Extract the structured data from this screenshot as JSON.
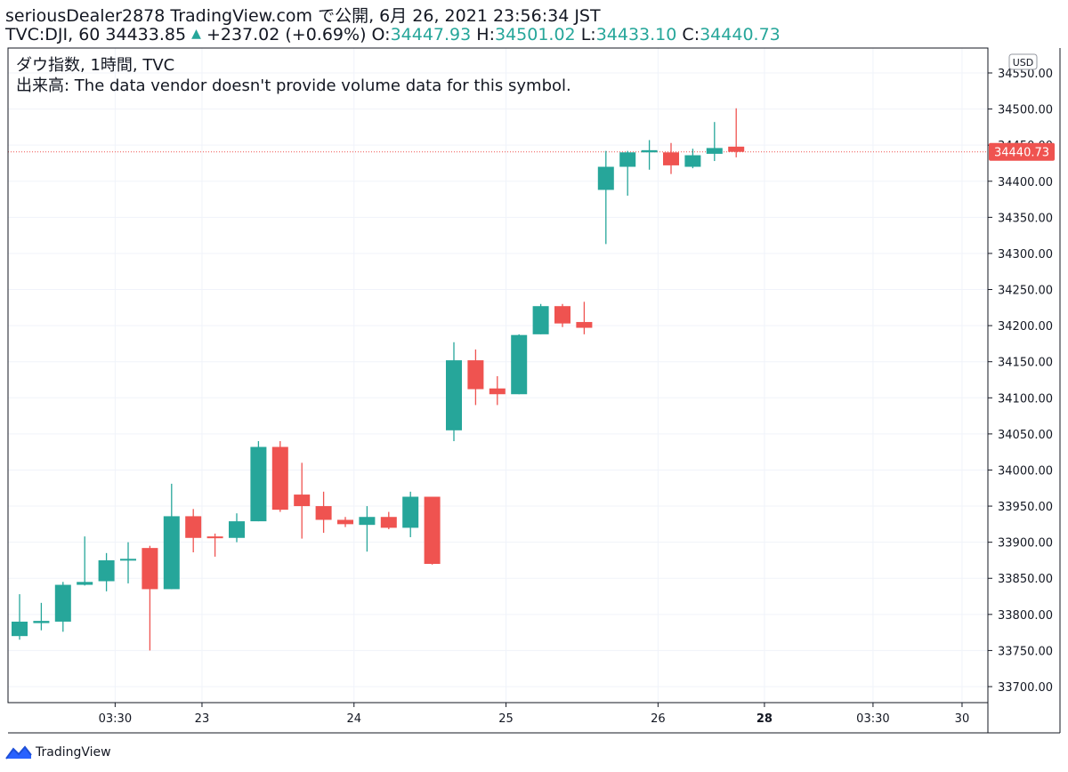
{
  "header": {
    "line1": "seriousDealer2878 TradingView.com で公開, 6月 26, 2021 23:56:34 JST",
    "symbol_prefix": "TVC:DJI, 60 34433.85",
    "change": "+237.02 (+0.69%)",
    "o_label": "O:",
    "o_value": "34447.93",
    "h_label": "H:",
    "h_value": "34501.02",
    "l_label": "L:",
    "l_value": "34433.10",
    "c_label": "C:",
    "c_value": "34440.73"
  },
  "legend": {
    "title": "ダウ指数, 1時間, TVC",
    "volume_note": "出来高: The data vendor doesn't provide volume data for this symbol."
  },
  "footer": {
    "brand": "TradingView"
  },
  "colors": {
    "up": "#26a69a",
    "down": "#ef5350",
    "grid": "#f0f3fa",
    "price_line": "#ef5350"
  },
  "chart_data": {
    "type": "candlestick",
    "currency_label": "USD",
    "last_price_label": "34440.73",
    "last_price": 34440.73,
    "ylim": [
      33670,
      34580
    ],
    "y_ticks": [
      "33700.00",
      "33750.00",
      "33800.00",
      "33850.00",
      "33900.00",
      "33950.00",
      "34000.00",
      "34050.00",
      "34100.00",
      "34150.00",
      "34200.00",
      "34250.00",
      "34300.00",
      "34350.00",
      "34400.00",
      "34450.00",
      "34500.00",
      "34550.00"
    ],
    "x_ticks": [
      {
        "label": "03:30",
        "index": 4.4,
        "bold": false
      },
      {
        "label": "23",
        "index": 8.4,
        "bold": false
      },
      {
        "label": "24",
        "index": 15.4,
        "bold": false
      },
      {
        "label": "25",
        "index": 22.4,
        "bold": false
      },
      {
        "label": "26",
        "index": 29.4,
        "bold": false
      },
      {
        "label": "28",
        "index": 34.3,
        "bold": true
      },
      {
        "label": "03:30",
        "index": 39.3,
        "bold": false
      },
      {
        "label": "30",
        "index": 43.4,
        "bold": false
      }
    ],
    "candles": [
      {
        "o": 33770,
        "h": 33828,
        "l": 33765,
        "c": 33790
      },
      {
        "o": 33788,
        "h": 33816,
        "l": 33778,
        "c": 33791
      },
      {
        "o": 33790,
        "h": 33845,
        "l": 33776,
        "c": 33841
      },
      {
        "o": 33841,
        "h": 33908,
        "l": 33840,
        "c": 33845
      },
      {
        "o": 33846,
        "h": 33885,
        "l": 33832,
        "c": 33875
      },
      {
        "o": 33875,
        "h": 33900,
        "l": 33843,
        "c": 33877
      },
      {
        "o": 33892,
        "h": 33895,
        "l": 33750,
        "c": 33835
      },
      {
        "o": 33835,
        "h": 33981,
        "l": 33835,
        "c": 33936
      },
      {
        "o": 33936,
        "h": 33946,
        "l": 33886,
        "c": 33906
      },
      {
        "o": 33908,
        "h": 33912,
        "l": 33880,
        "c": 33906
      },
      {
        "o": 33906,
        "h": 33940,
        "l": 33900,
        "c": 33929
      },
      {
        "o": 33929,
        "h": 34040,
        "l": 33929,
        "c": 34032
      },
      {
        "o": 34032,
        "h": 34040,
        "l": 33942,
        "c": 33945
      },
      {
        "o": 33966,
        "h": 34010,
        "l": 33905,
        "c": 33950
      },
      {
        "o": 33950,
        "h": 33970,
        "l": 33913,
        "c": 33931
      },
      {
        "o": 33931,
        "h": 33935,
        "l": 33921,
        "c": 33925
      },
      {
        "o": 33924,
        "h": 33950,
        "l": 33887,
        "c": 33935
      },
      {
        "o": 33935,
        "h": 33942,
        "l": 33918,
        "c": 33920
      },
      {
        "o": 33920,
        "h": 33970,
        "l": 33907,
        "c": 33963
      },
      {
        "o": 33963,
        "h": 33963,
        "l": 33869,
        "c": 33870
      },
      {
        "o": 34055,
        "h": 34177,
        "l": 34040,
        "c": 34152
      },
      {
        "o": 34152,
        "h": 34167,
        "l": 34090,
        "c": 34112
      },
      {
        "o": 34113,
        "h": 34130,
        "l": 34090,
        "c": 34105
      },
      {
        "o": 34105,
        "h": 34188,
        "l": 34105,
        "c": 34187
      },
      {
        "o": 34188,
        "h": 34230,
        "l": 34188,
        "c": 34227
      },
      {
        "o": 34227,
        "h": 34230,
        "l": 34198,
        "c": 34203
      },
      {
        "o": 34205,
        "h": 34233,
        "l": 34188,
        "c": 34197
      },
      {
        "o": 34388,
        "h": 34442,
        "l": 34313,
        "c": 34420
      },
      {
        "o": 34420,
        "h": 34442,
        "l": 34380,
        "c": 34440
      },
      {
        "o": 34440,
        "h": 34457,
        "l": 34416,
        "c": 34443
      },
      {
        "o": 34440,
        "h": 34453,
        "l": 34410,
        "c": 34422
      },
      {
        "o": 34420,
        "h": 34445,
        "l": 34418,
        "c": 34436
      },
      {
        "o": 34438,
        "h": 34482,
        "l": 34428,
        "c": 34446
      },
      {
        "o": 34447.93,
        "h": 34501.02,
        "l": 34433.1,
        "c": 34440.73
      }
    ]
  }
}
